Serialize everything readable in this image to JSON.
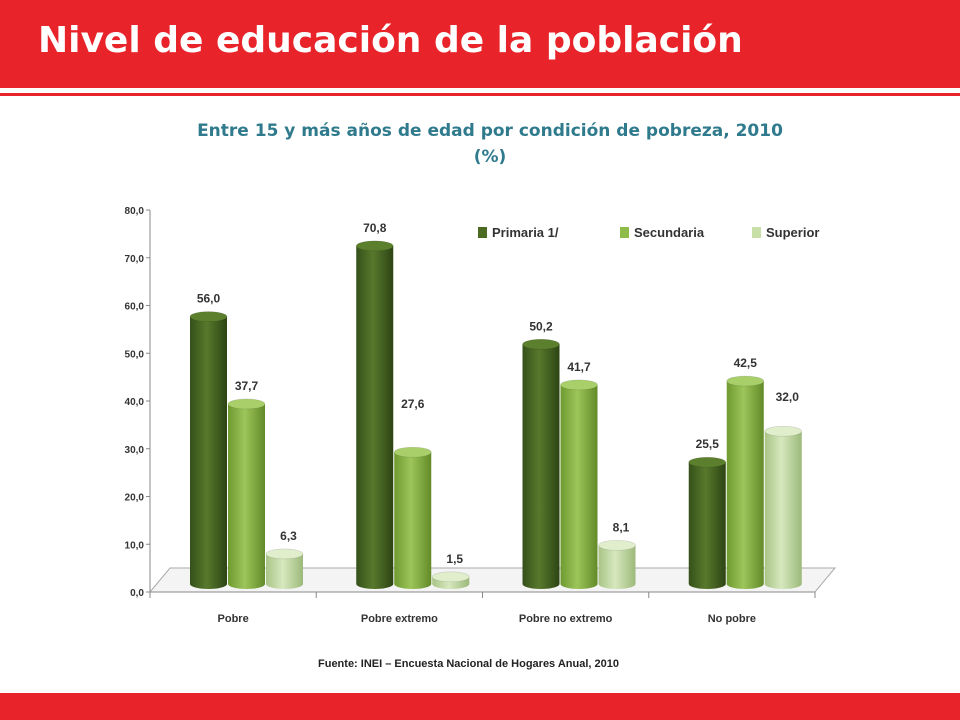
{
  "header": {
    "title": "Nivel de educación de la población"
  },
  "chart_data": {
    "type": "bar",
    "title": "Entre 15 y más años de edad por condición de pobreza, 2010",
    "subtitle": "(%)",
    "categories": [
      "Pobre",
      "Pobre extremo",
      "Pobre no extremo",
      "No pobre"
    ],
    "series": [
      {
        "name": "Primaria 1/",
        "values": [
          56.0,
          70.8,
          50.2,
          25.5
        ],
        "labels": [
          "56,0",
          "70,8",
          "50,2",
          "25,5"
        ]
      },
      {
        "name": "Secundaria",
        "values": [
          37.7,
          27.6,
          41.7,
          42.5
        ],
        "labels": [
          "37,7",
          "27,6",
          "41,7",
          "42,5"
        ]
      },
      {
        "name": "Superior",
        "values": [
          6.3,
          1.5,
          8.1,
          32.0
        ],
        "labels": [
          "6,3",
          "1,5",
          "8,1",
          "32,0"
        ]
      }
    ],
    "ylim": [
      0,
      80
    ],
    "yticks": [
      "0,0",
      "10,0",
      "20,0",
      "30,0",
      "40,0",
      "50,0",
      "60,0",
      "70,0",
      "80,0"
    ],
    "xlabel": "",
    "ylabel": "",
    "legend": "top-right",
    "source": "Fuente: INEI – Encuesta Nacional de Hogares Anual, 2010"
  },
  "colors": {
    "brand": "#e8232a",
    "subtitle": "#2f7a8c",
    "primaria": "#4b6b22",
    "secundaria": "#8fbc48",
    "superior": "#c9dfa8"
  }
}
